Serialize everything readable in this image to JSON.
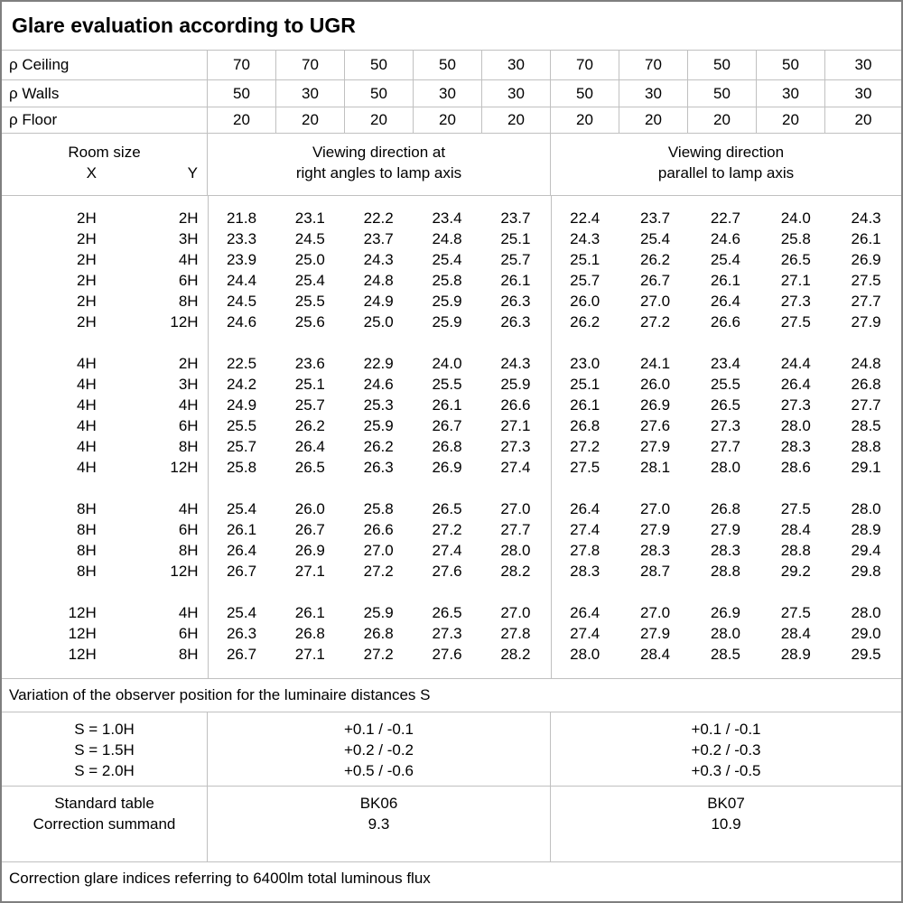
{
  "title": "Glare evaluation according to UGR",
  "reflectance_rows": [
    {
      "label": "ρ Ceiling",
      "values": [
        "70",
        "70",
        "50",
        "50",
        "30",
        "70",
        "70",
        "50",
        "50",
        "30"
      ]
    },
    {
      "label": "ρ Walls",
      "values": [
        "50",
        "30",
        "50",
        "30",
        "30",
        "50",
        "30",
        "50",
        "30",
        "30"
      ]
    },
    {
      "label": "ρ Floor",
      "values": [
        "20",
        "20",
        "20",
        "20",
        "20",
        "20",
        "20",
        "20",
        "20",
        "20"
      ]
    }
  ],
  "header": {
    "room_size": "Room size",
    "x_label": "X",
    "y_label": "Y",
    "left_line1": "Viewing direction at",
    "left_line2": "right angles to lamp axis",
    "right_line1": "Viewing direction",
    "right_line2": "parallel to lamp axis"
  },
  "groups": [
    {
      "rows": [
        {
          "x": "2H",
          "y": "2H",
          "right_angles": [
            "21.8",
            "23.1",
            "22.2",
            "23.4",
            "23.7"
          ],
          "parallel": [
            "22.4",
            "23.7",
            "22.7",
            "24.0",
            "24.3"
          ]
        },
        {
          "x": "2H",
          "y": "3H",
          "right_angles": [
            "23.3",
            "24.5",
            "23.7",
            "24.8",
            "25.1"
          ],
          "parallel": [
            "24.3",
            "25.4",
            "24.6",
            "25.8",
            "26.1"
          ]
        },
        {
          "x": "2H",
          "y": "4H",
          "right_angles": [
            "23.9",
            "25.0",
            "24.3",
            "25.4",
            "25.7"
          ],
          "parallel": [
            "25.1",
            "26.2",
            "25.4",
            "26.5",
            "26.9"
          ]
        },
        {
          "x": "2H",
          "y": "6H",
          "right_angles": [
            "24.4",
            "25.4",
            "24.8",
            "25.8",
            "26.1"
          ],
          "parallel": [
            "25.7",
            "26.7",
            "26.1",
            "27.1",
            "27.5"
          ]
        },
        {
          "x": "2H",
          "y": "8H",
          "right_angles": [
            "24.5",
            "25.5",
            "24.9",
            "25.9",
            "26.3"
          ],
          "parallel": [
            "26.0",
            "27.0",
            "26.4",
            "27.3",
            "27.7"
          ]
        },
        {
          "x": "2H",
          "y": "12H",
          "right_angles": [
            "24.6",
            "25.6",
            "25.0",
            "25.9",
            "26.3"
          ],
          "parallel": [
            "26.2",
            "27.2",
            "26.6",
            "27.5",
            "27.9"
          ]
        }
      ]
    },
    {
      "rows": [
        {
          "x": "4H",
          "y": "2H",
          "right_angles": [
            "22.5",
            "23.6",
            "22.9",
            "24.0",
            "24.3"
          ],
          "parallel": [
            "23.0",
            "24.1",
            "23.4",
            "24.4",
            "24.8"
          ]
        },
        {
          "x": "4H",
          "y": "3H",
          "right_angles": [
            "24.2",
            "25.1",
            "24.6",
            "25.5",
            "25.9"
          ],
          "parallel": [
            "25.1",
            "26.0",
            "25.5",
            "26.4",
            "26.8"
          ]
        },
        {
          "x": "4H",
          "y": "4H",
          "right_angles": [
            "24.9",
            "25.7",
            "25.3",
            "26.1",
            "26.6"
          ],
          "parallel": [
            "26.1",
            "26.9",
            "26.5",
            "27.3",
            "27.7"
          ]
        },
        {
          "x": "4H",
          "y": "6H",
          "right_angles": [
            "25.5",
            "26.2",
            "25.9",
            "26.7",
            "27.1"
          ],
          "parallel": [
            "26.8",
            "27.6",
            "27.3",
            "28.0",
            "28.5"
          ]
        },
        {
          "x": "4H",
          "y": "8H",
          "right_angles": [
            "25.7",
            "26.4",
            "26.2",
            "26.8",
            "27.3"
          ],
          "parallel": [
            "27.2",
            "27.9",
            "27.7",
            "28.3",
            "28.8"
          ]
        },
        {
          "x": "4H",
          "y": "12H",
          "right_angles": [
            "25.8",
            "26.5",
            "26.3",
            "26.9",
            "27.4"
          ],
          "parallel": [
            "27.5",
            "28.1",
            "28.0",
            "28.6",
            "29.1"
          ]
        }
      ]
    },
    {
      "rows": [
        {
          "x": "8H",
          "y": "4H",
          "right_angles": [
            "25.4",
            "26.0",
            "25.8",
            "26.5",
            "27.0"
          ],
          "parallel": [
            "26.4",
            "27.0",
            "26.8",
            "27.5",
            "28.0"
          ]
        },
        {
          "x": "8H",
          "y": "6H",
          "right_angles": [
            "26.1",
            "26.7",
            "26.6",
            "27.2",
            "27.7"
          ],
          "parallel": [
            "27.4",
            "27.9",
            "27.9",
            "28.4",
            "28.9"
          ]
        },
        {
          "x": "8H",
          "y": "8H",
          "right_angles": [
            "26.4",
            "26.9",
            "27.0",
            "27.4",
            "28.0"
          ],
          "parallel": [
            "27.8",
            "28.3",
            "28.3",
            "28.8",
            "29.4"
          ]
        },
        {
          "x": "8H",
          "y": "12H",
          "right_angles": [
            "26.7",
            "27.1",
            "27.2",
            "27.6",
            "28.2"
          ],
          "parallel": [
            "28.3",
            "28.7",
            "28.8",
            "29.2",
            "29.8"
          ]
        }
      ]
    },
    {
      "rows": [
        {
          "x": "12H",
          "y": "4H",
          "right_angles": [
            "25.4",
            "26.1",
            "25.9",
            "26.5",
            "27.0"
          ],
          "parallel": [
            "26.4",
            "27.0",
            "26.9",
            "27.5",
            "28.0"
          ]
        },
        {
          "x": "12H",
          "y": "6H",
          "right_angles": [
            "26.3",
            "26.8",
            "26.8",
            "27.3",
            "27.8"
          ],
          "parallel": [
            "27.4",
            "27.9",
            "28.0",
            "28.4",
            "29.0"
          ]
        },
        {
          "x": "12H",
          "y": "8H",
          "right_angles": [
            "26.7",
            "27.1",
            "27.2",
            "27.6",
            "28.2"
          ],
          "parallel": [
            "28.0",
            "28.4",
            "28.5",
            "28.9",
            "29.5"
          ]
        }
      ]
    }
  ],
  "variation_note": "Variation of the observer position for the luminaire distances S",
  "observer_variation": {
    "labels": [
      "S = 1.0H",
      "S = 1.5H",
      "S = 2.0H"
    ],
    "right_angles": [
      "+0.1 / -0.1",
      "+0.2 / -0.2",
      "+0.5 / -0.6"
    ],
    "parallel": [
      "+0.1 / -0.1",
      "+0.2 / -0.3",
      "+0.3 / -0.5"
    ]
  },
  "standard": {
    "row_labels": [
      "Standard table",
      "Correction summand"
    ],
    "right_angles": [
      "BK06",
      "9.3"
    ],
    "parallel": [
      "BK07",
      "10.9"
    ]
  },
  "footnote": "Correction glare indices referring to 6400lm total luminous flux",
  "colors": {
    "grid": "#c0c0c0",
    "outer_border": "#7f7f7f",
    "text": "#000000",
    "background": "#ffffff"
  }
}
